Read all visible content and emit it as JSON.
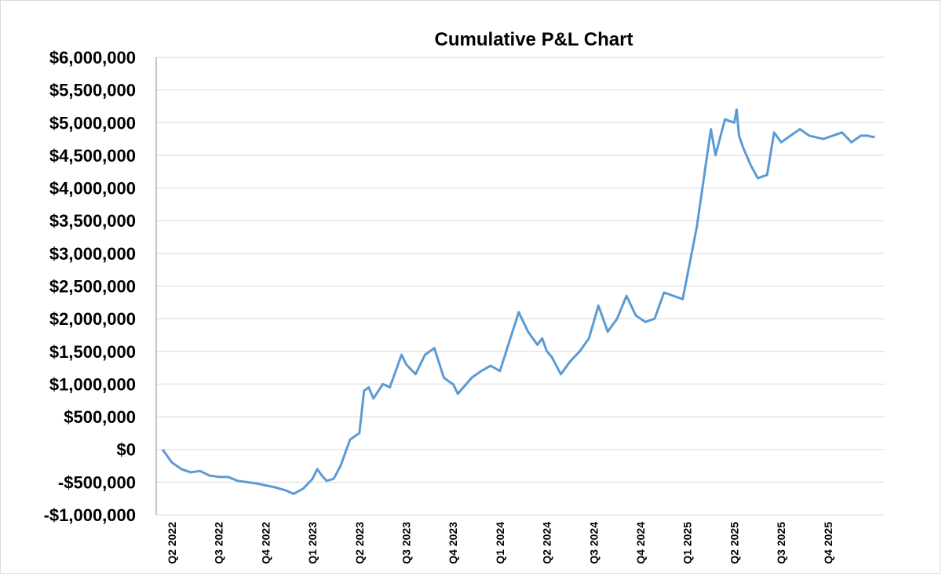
{
  "chart_data": {
    "type": "line",
    "title": "Cumulative P&L Chart",
    "xlabel": "",
    "ylabel": "",
    "ylim": [
      -1000000,
      6000000
    ],
    "y_ticks": [
      -1000000,
      -500000,
      0,
      500000,
      1000000,
      1500000,
      2000000,
      2500000,
      3000000,
      3500000,
      4000000,
      4500000,
      5000000,
      5500000,
      6000000
    ],
    "y_tick_labels": [
      "-$1,000,000",
      "-$500,000",
      "$0",
      "$500,000",
      "$1,000,000",
      "$1,500,000",
      "$2,000,000",
      "$2,500,000",
      "$3,000,000",
      "$3,500,000",
      "$4,000,000",
      "$4,500,000",
      "$5,000,000",
      "$5,500,000",
      "$6,000,000"
    ],
    "x_ticks": [
      "Q2 2022",
      "Q3 2022",
      "Q4 2022",
      "Q1 2023",
      "Q2 2023",
      "Q3 2023",
      "Q4 2023",
      "Q1 2024",
      "Q2 2024",
      "Q3 2024",
      "Q4 2024",
      "Q1 2025",
      "Q2 2025",
      "Q3 2025",
      "Q4 2025"
    ],
    "x_tick_index": [
      0,
      1,
      2,
      3,
      4,
      5,
      6,
      7,
      8,
      9,
      10,
      11,
      12,
      13,
      14
    ],
    "grid": true,
    "legend": "none",
    "color": "#5b9bd5",
    "series": [
      {
        "name": "",
        "x": [
          -0.2,
          -0.1,
          0.0,
          0.2,
          0.4,
          0.6,
          0.8,
          1.0,
          1.2,
          1.4,
          1.6,
          1.8,
          2.0,
          2.2,
          2.4,
          2.6,
          2.8,
          3.0,
          3.1,
          3.2,
          3.3,
          3.45,
          3.6,
          3.8,
          4.0,
          4.1,
          4.2,
          4.3,
          4.5,
          4.65,
          4.7,
          4.9,
          5.0,
          5.2,
          5.4,
          5.6,
          5.8,
          5.95,
          6.0,
          6.1,
          6.4,
          6.6,
          6.8,
          7.0,
          7.2,
          7.4,
          7.6,
          7.8,
          7.9,
          8.0,
          8.1,
          8.3,
          8.5,
          8.7,
          8.9,
          9.1,
          9.3,
          9.5,
          9.7,
          9.9,
          10.1,
          10.3,
          10.5,
          10.7,
          10.9,
          11.2,
          11.5,
          11.6,
          11.8,
          12.0,
          12.05,
          12.1,
          12.2,
          12.35,
          12.5,
          12.7,
          12.85,
          13.0,
          13.2,
          13.4,
          13.6,
          13.9,
          14.1,
          14.3,
          14.5,
          14.7,
          14.85,
          14.95,
          15.0
        ],
        "values": [
          0,
          -100000,
          -200000,
          -300000,
          -350000,
          -330000,
          -400000,
          -420000,
          -420000,
          -480000,
          -500000,
          -520000,
          -550000,
          -580000,
          -620000,
          -680000,
          -600000,
          -450000,
          -300000,
          -400000,
          -480000,
          -450000,
          -250000,
          150000,
          250000,
          900000,
          950000,
          780000,
          1000000,
          950000,
          1050000,
          1450000,
          1300000,
          1150000,
          1450000,
          1550000,
          1100000,
          1020000,
          1000000,
          850000,
          1100000,
          1200000,
          1280000,
          1200000,
          1650000,
          2100000,
          1800000,
          1600000,
          1700000,
          1500000,
          1420000,
          1150000,
          1350000,
          1500000,
          1700000,
          2200000,
          1800000,
          2000000,
          2350000,
          2050000,
          1950000,
          2000000,
          2400000,
          2350000,
          2300000,
          3400000,
          4900000,
          4500000,
          5050000,
          5000000,
          5200000,
          4800000,
          4600000,
          4350000,
          4150000,
          4200000,
          4850000,
          4700000,
          4800000,
          4900000,
          4800000,
          4750000,
          4800000,
          4850000,
          4700000,
          4800000,
          4800000,
          4780000,
          4790000
        ]
      }
    ]
  }
}
